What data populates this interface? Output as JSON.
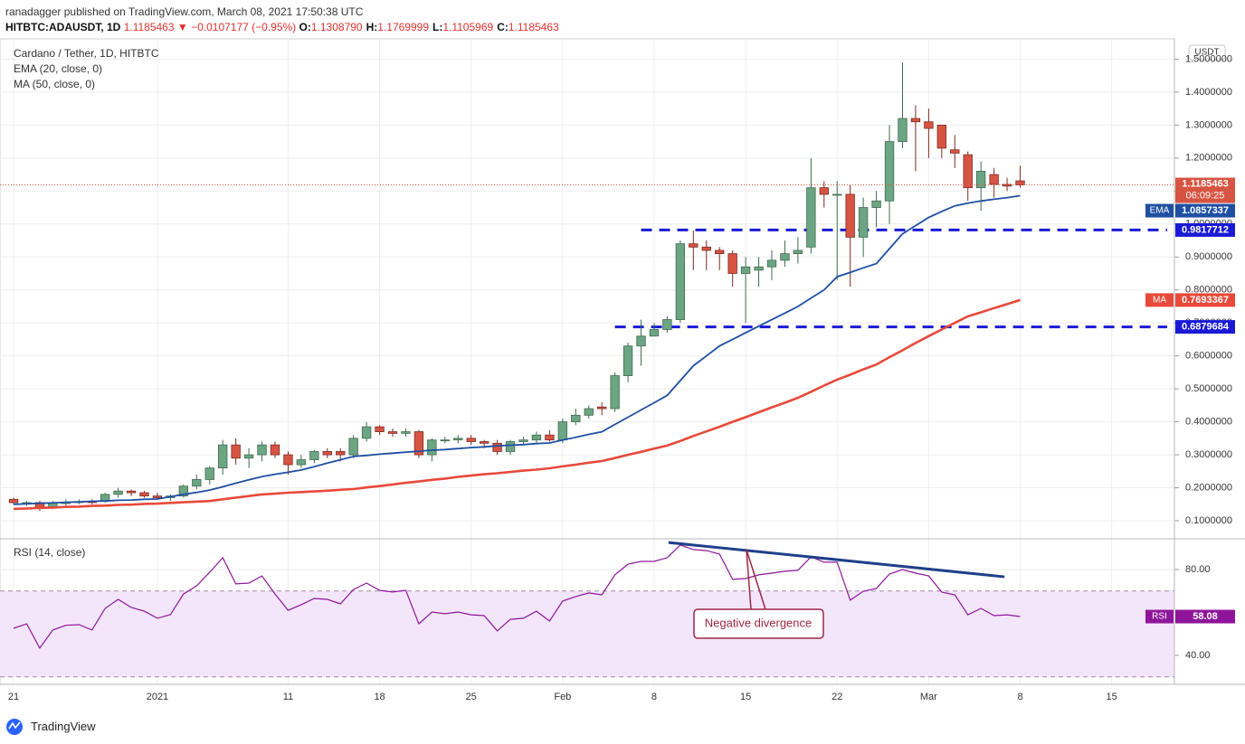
{
  "header": {
    "publisher": "ranadagger published on TradingView.com, March 08, 2021 17:50:38 UTC",
    "symbol": "HITBTC:ADAUSDT, 1D",
    "price": "1.1185463",
    "change": "▼ −0.0107177 (−0.95%)",
    "ohlc": [
      {
        "label": "O:",
        "value": "1.1308790"
      },
      {
        "label": "H:",
        "value": "1.1769999"
      },
      {
        "label": "L:",
        "value": "1.1105969"
      },
      {
        "label": "C:",
        "value": "1.1185463"
      }
    ]
  },
  "footer": "TradingView",
  "chart_data": [
    {
      "type": "candlestick",
      "title": "Cardano / Tether, 1D, HITBTC",
      "unit": "USDT",
      "countdown": "06:09:25",
      "up_color": "#6ca583",
      "down_color": "#d75442",
      "xlim": [
        -1.04,
        88.8
      ],
      "xticks": [
        {
          "value": 0,
          "label": "21"
        },
        {
          "value": 11,
          "label": "2021"
        },
        {
          "value": 21,
          "label": "11"
        },
        {
          "value": 28,
          "label": "18"
        },
        {
          "value": 35,
          "label": "25"
        },
        {
          "value": 42,
          "label": "Feb"
        },
        {
          "value": 49,
          "label": "8"
        },
        {
          "value": 56,
          "label": "15"
        },
        {
          "value": 63,
          "label": "22"
        },
        {
          "value": 70,
          "label": "Mar"
        },
        {
          "value": 77,
          "label": "8"
        },
        {
          "value": 84,
          "label": "15"
        }
      ],
      "ylim": [
        0.048,
        1.556
      ],
      "yticks": [
        {
          "value": 0.1,
          "label": "0.1000000"
        },
        {
          "value": 0.2,
          "label": "0.2000000"
        },
        {
          "value": 0.3,
          "label": "0.3000000"
        },
        {
          "value": 0.4,
          "label": "0.4000000"
        },
        {
          "value": 0.5,
          "label": "0.5000000"
        },
        {
          "value": 0.6,
          "label": "0.6000000"
        },
        {
          "value": 0.7,
          "label": "0.7000000"
        },
        {
          "value": 0.8,
          "label": "0.8000000"
        },
        {
          "value": 0.9,
          "label": "0.9000000"
        },
        {
          "value": 1.0,
          "label": "1.0000000"
        },
        {
          "value": 1.1,
          "label": "1.1000000"
        },
        {
          "value": 1.2,
          "label": "1.2000000"
        },
        {
          "value": 1.3,
          "label": "1.3000000"
        },
        {
          "value": 1.4,
          "label": "1.4000000"
        },
        {
          "value": 1.5,
          "label": "1.5000000"
        }
      ],
      "open": [
        0.165,
        0.152,
        0.155,
        0.14,
        0.155,
        0.155,
        0.158,
        0.16,
        0.18,
        0.19,
        0.185,
        0.175,
        0.17,
        0.175,
        0.205,
        0.225,
        0.26,
        0.33,
        0.29,
        0.3,
        0.33,
        0.3,
        0.27,
        0.285,
        0.31,
        0.31,
        0.3,
        0.35,
        0.385,
        0.37,
        0.365,
        0.37,
        0.3,
        0.345,
        0.345,
        0.35,
        0.34,
        0.335,
        0.31,
        0.34,
        0.345,
        0.36,
        0.345,
        0.4,
        0.42,
        0.445,
        0.44,
        0.54,
        0.63,
        0.66,
        0.68,
        0.71,
        0.94,
        0.93,
        0.92,
        0.91,
        0.85,
        0.86,
        0.87,
        0.89,
        0.91,
        0.93,
        1.11,
        1.09,
        1.09,
        0.96,
        1.05,
        1.07,
        1.25,
        1.32,
        1.31,
        1.3,
        1.225,
        1.21,
        1.11,
        1.15,
        1.12,
        1.130879
      ],
      "high": [
        0.17,
        0.16,
        0.16,
        0.16,
        0.165,
        0.165,
        0.165,
        0.185,
        0.2,
        0.195,
        0.19,
        0.185,
        0.18,
        0.21,
        0.24,
        0.265,
        0.345,
        0.35,
        0.32,
        0.34,
        0.34,
        0.31,
        0.3,
        0.315,
        0.32,
        0.32,
        0.36,
        0.4,
        0.39,
        0.38,
        0.38,
        0.375,
        0.35,
        0.355,
        0.36,
        0.36,
        0.345,
        0.345,
        0.345,
        0.355,
        0.37,
        0.375,
        0.41,
        0.44,
        0.45,
        0.46,
        0.55,
        0.64,
        0.71,
        0.7,
        0.72,
        0.95,
        0.98,
        0.95,
        0.93,
        0.92,
        0.9,
        0.9,
        0.92,
        0.95,
        0.96,
        1.2,
        1.13,
        1.13,
        1.12,
        1.08,
        1.1,
        1.3,
        1.49,
        1.36,
        1.35,
        1.3,
        1.27,
        1.22,
        1.19,
        1.17,
        1.14,
        1.1769999
      ],
      "low": [
        0.15,
        0.145,
        0.13,
        0.135,
        0.145,
        0.15,
        0.15,
        0.155,
        0.17,
        0.175,
        0.17,
        0.165,
        0.16,
        0.17,
        0.195,
        0.21,
        0.24,
        0.27,
        0.26,
        0.28,
        0.29,
        0.24,
        0.26,
        0.275,
        0.29,
        0.28,
        0.29,
        0.34,
        0.36,
        0.355,
        0.355,
        0.29,
        0.28,
        0.335,
        0.335,
        0.33,
        0.32,
        0.3,
        0.3,
        0.33,
        0.335,
        0.34,
        0.335,
        0.39,
        0.41,
        0.42,
        0.43,
        0.52,
        0.57,
        0.66,
        0.67,
        0.7,
        0.86,
        0.86,
        0.86,
        0.81,
        0.7,
        0.81,
        0.83,
        0.87,
        0.88,
        0.91,
        1.05,
        0.83,
        0.81,
        0.9,
        0.99,
        1.0,
        1.23,
        1.16,
        1.2,
        1.2,
        1.17,
        1.07,
        1.04,
        1.08,
        1.1,
        1.1105969
      ],
      "close": [
        0.155,
        0.155,
        0.14,
        0.155,
        0.155,
        0.158,
        0.155,
        0.18,
        0.19,
        0.185,
        0.175,
        0.17,
        0.175,
        0.205,
        0.225,
        0.26,
        0.33,
        0.29,
        0.3,
        0.33,
        0.3,
        0.27,
        0.285,
        0.31,
        0.3,
        0.3,
        0.35,
        0.385,
        0.37,
        0.365,
        0.37,
        0.3,
        0.345,
        0.345,
        0.35,
        0.34,
        0.335,
        0.31,
        0.34,
        0.345,
        0.36,
        0.345,
        0.4,
        0.42,
        0.44,
        0.44,
        0.54,
        0.63,
        0.66,
        0.68,
        0.71,
        0.94,
        0.93,
        0.92,
        0.91,
        0.85,
        0.87,
        0.87,
        0.89,
        0.91,
        0.92,
        1.11,
        1.09,
        1.09,
        0.96,
        1.05,
        1.07,
        1.25,
        1.32,
        1.31,
        1.29,
        1.23,
        1.215,
        1.11,
        1.16,
        1.12,
        1.115,
        1.1185463
      ],
      "series": [
        {
          "name": "EMA (20, close, 0)",
          "short": "EMA",
          "color": "#1e4fa3",
          "values": [
            0.15,
            0.151,
            0.153,
            0.154,
            0.156,
            0.157,
            0.159,
            0.16,
            0.162,
            0.163,
            0.165,
            0.166,
            0.173,
            0.18,
            0.186,
            0.193,
            0.203,
            0.214,
            0.224,
            0.234,
            0.241,
            0.247,
            0.254,
            0.264,
            0.275,
            0.285,
            0.295,
            0.298,
            0.302,
            0.305,
            0.308,
            0.311,
            0.314,
            0.316,
            0.319,
            0.322,
            0.324,
            0.327,
            0.329,
            0.331,
            0.334,
            0.336,
            0.345,
            0.353,
            0.362,
            0.37,
            0.392,
            0.414,
            0.436,
            0.458,
            0.48,
            0.525,
            0.57,
            0.6,
            0.63,
            0.65,
            0.67,
            0.69,
            0.71,
            0.73,
            0.75,
            0.775,
            0.8,
            0.84,
            0.853,
            0.867,
            0.88,
            0.925,
            0.97,
            0.995,
            1.02,
            1.038,
            1.055,
            1.063,
            1.07,
            1.075,
            1.08,
            1.0857337
          ]
        },
        {
          "name": "MA (50, close, 0)",
          "short": "MA",
          "color": "#e8493a",
          "values": [
            0.136,
            0.137,
            0.139,
            0.14,
            0.142,
            0.143,
            0.145,
            0.146,
            0.148,
            0.149,
            0.151,
            0.152,
            0.154,
            0.156,
            0.158,
            0.16,
            0.165,
            0.17,
            0.175,
            0.18,
            0.182,
            0.185,
            0.187,
            0.189,
            0.191,
            0.194,
            0.196,
            0.201,
            0.205,
            0.21,
            0.215,
            0.219,
            0.224,
            0.228,
            0.233,
            0.237,
            0.241,
            0.244,
            0.248,
            0.252,
            0.255,
            0.259,
            0.265,
            0.27,
            0.276,
            0.281,
            0.29,
            0.3,
            0.309,
            0.319,
            0.328,
            0.342,
            0.357,
            0.371,
            0.385,
            0.4,
            0.414,
            0.429,
            0.444,
            0.458,
            0.473,
            0.491,
            0.51,
            0.528,
            0.543,
            0.559,
            0.574,
            0.596,
            0.617,
            0.639,
            0.66,
            0.68,
            0.7,
            0.72,
            0.732,
            0.745,
            0.757,
            0.7693367
          ]
        }
      ],
      "levels": [
        {
          "value": 0.9817712,
          "x": 48,
          "color": "#1a1ad6"
        },
        {
          "value": 0.6879684,
          "x": 46,
          "color": "#1a1ad6"
        }
      ]
    },
    {
      "type": "line",
      "title": "RSI (14, close)",
      "short": "RSI",
      "color": "#8e1599",
      "ylim": [
        26.5,
        93.9
      ],
      "yticks": [
        {
          "value": 80,
          "label": "80.00"
        },
        {
          "value": 40,
          "label": "40.00"
        }
      ],
      "band": [
        30,
        70
      ],
      "values": [
        52.6,
        54.7,
        43.4,
        51.8,
        54,
        54.3,
        51.8,
        61.9,
        66.1,
        62.3,
        60.6,
        57.3,
        59,
        68.6,
        72.4,
        78.7,
        85.5,
        73.3,
        73.7,
        77,
        68.6,
        61,
        63.6,
        66.5,
        66.1,
        64,
        70.7,
        73.7,
        70.3,
        69.5,
        70.3,
        54.7,
        60.2,
        59.4,
        60.2,
        58.9,
        58.5,
        51.4,
        56.8,
        57.3,
        60.6,
        56,
        65.3,
        67.4,
        69.1,
        68.2,
        77.5,
        82.5,
        83.8,
        83.8,
        85.5,
        91.4,
        89.3,
        88.8,
        87.2,
        75.4,
        75.8,
        77.5,
        78.3,
        79.2,
        79.6,
        85.9,
        83.4,
        83.4,
        65.7,
        69.9,
        71.2,
        77.9,
        80,
        78.3,
        77,
        69.5,
        68.2,
        58.9,
        61.9,
        58.5,
        58.9,
        58.08
      ],
      "trendline": {
        "from": [
          50.1,
          92.6
        ],
        "to": [
          75.8,
          76.6
        ],
        "color": "#1f3f8a"
      },
      "annotation": "Negative divergence"
    }
  ]
}
